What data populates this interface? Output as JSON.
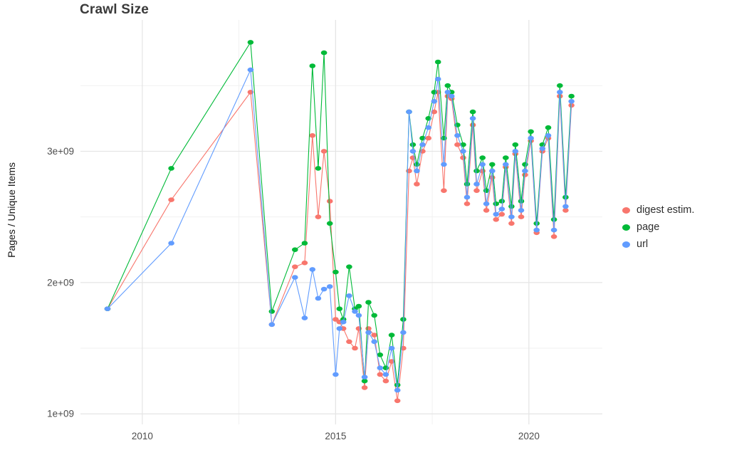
{
  "title": "Crawl Size",
  "chart_data": {
    "type": "line",
    "title": "Crawl Size",
    "xlabel": "",
    "ylabel": "Pages / Unique Items",
    "grid": true,
    "legend_position": "right",
    "xlim": [
      2008.4,
      2021.9
    ],
    "ylim": [
      920000000.0,
      4000000000.0
    ],
    "x_ticks": {
      "values": [
        2010,
        2015,
        2020
      ],
      "labels": [
        "2010",
        "2015",
        "2020"
      ]
    },
    "y_ticks": {
      "values": [
        1000000000.0,
        2000000000.0,
        3000000000.0
      ],
      "labels": [
        "1e+09",
        "2e+09",
        "3e+09"
      ]
    },
    "x_minor": [
      2012.5,
      2017.5
    ],
    "y_minor": [
      1500000000.0,
      2500000000.0,
      3500000000.0
    ],
    "x": [
      2009.1,
      2010.75,
      2012.8,
      2013.35,
      2013.95,
      2014.2,
      2014.4,
      2014.55,
      2014.7,
      2014.85,
      2015.0,
      2015.1,
      2015.2,
      2015.35,
      2015.5,
      2015.6,
      2015.75,
      2015.85,
      2016.0,
      2016.15,
      2016.3,
      2016.45,
      2016.6,
      2016.75,
      2016.9,
      2017.0,
      2017.1,
      2017.25,
      2017.4,
      2017.55,
      2017.65,
      2017.8,
      2017.9,
      2018.0,
      2018.15,
      2018.3,
      2018.4,
      2018.55,
      2018.65,
      2018.8,
      2018.9,
      2019.05,
      2019.15,
      2019.3,
      2019.4,
      2019.55,
      2019.65,
      2019.8,
      2019.9,
      2020.05,
      2020.2,
      2020.35,
      2020.5,
      2020.65,
      2020.8,
      2020.95,
      2021.1
    ],
    "series": [
      {
        "id": "digest-estim",
        "name": "digest estim.",
        "color": "#F8766D",
        "values": [
          1800000000.0,
          2630000000.0,
          3450000000.0,
          1680000000.0,
          2120000000.0,
          2150000000.0,
          3120000000.0,
          2500000000.0,
          3000000000.0,
          2620000000.0,
          1720000000.0,
          1700000000.0,
          1650000000.0,
          1550000000.0,
          1500000000.0,
          1650000000.0,
          1200000000.0,
          1650000000.0,
          1600000000.0,
          1300000000.0,
          1250000000.0,
          1400000000.0,
          1100000000.0,
          1500000000.0,
          2850000000.0,
          2950000000.0,
          2750000000.0,
          3000000000.0,
          3100000000.0,
          3300000000.0,
          3450000000.0,
          2700000000.0,
          3420000000.0,
          3400000000.0,
          3050000000.0,
          2950000000.0,
          2600000000.0,
          3200000000.0,
          2700000000.0,
          2850000000.0,
          2550000000.0,
          2800000000.0,
          2480000000.0,
          2520000000.0,
          2880000000.0,
          2450000000.0,
          2980000000.0,
          2500000000.0,
          2820000000.0,
          3080000000.0,
          2380000000.0,
          3000000000.0,
          3100000000.0,
          2350000000.0,
          3420000000.0,
          2550000000.0,
          3350000000.0
        ]
      },
      {
        "id": "page",
        "name": "page",
        "color": "#00BA38",
        "values": [
          1800000000.0,
          2870000000.0,
          3830000000.0,
          1780000000.0,
          2250000000.0,
          2300000000.0,
          3650000000.0,
          2870000000.0,
          3750000000.0,
          2450000000.0,
          2080000000.0,
          1800000000.0,
          1720000000.0,
          2120000000.0,
          1800000000.0,
          1820000000.0,
          1250000000.0,
          1850000000.0,
          1750000000.0,
          1450000000.0,
          1350000000.0,
          1600000000.0,
          1220000000.0,
          1720000000.0,
          3300000000.0,
          3050000000.0,
          2900000000.0,
          3100000000.0,
          3250000000.0,
          3450000000.0,
          3680000000.0,
          3100000000.0,
          3500000000.0,
          3450000000.0,
          3200000000.0,
          3050000000.0,
          2750000000.0,
          3300000000.0,
          2850000000.0,
          2950000000.0,
          2700000000.0,
          2900000000.0,
          2600000000.0,
          2620000000.0,
          2950000000.0,
          2580000000.0,
          3050000000.0,
          2620000000.0,
          2900000000.0,
          3150000000.0,
          2450000000.0,
          3050000000.0,
          3180000000.0,
          2480000000.0,
          3500000000.0,
          2650000000.0,
          3420000000.0
        ]
      },
      {
        "id": "url",
        "name": "url",
        "color": "#619CFF",
        "values": [
          1800000000.0,
          2300000000.0,
          3620000000.0,
          1680000000.0,
          2040000000.0,
          1730000000.0,
          2100000000.0,
          1880000000.0,
          1950000000.0,
          1970000000.0,
          1300000000.0,
          1650000000.0,
          1700000000.0,
          1900000000.0,
          1780000000.0,
          1750000000.0,
          1280000000.0,
          1620000000.0,
          1550000000.0,
          1350000000.0,
          1300000000.0,
          1500000000.0,
          1180000000.0,
          1620000000.0,
          3300000000.0,
          3000000000.0,
          2850000000.0,
          3050000000.0,
          3180000000.0,
          3380000000.0,
          3550000000.0,
          2900000000.0,
          3450000000.0,
          3420000000.0,
          3120000000.0,
          3000000000.0,
          2650000000.0,
          3250000000.0,
          2750000000.0,
          2900000000.0,
          2600000000.0,
          2850000000.0,
          2520000000.0,
          2560000000.0,
          2900000000.0,
          2500000000.0,
          3000000000.0,
          2550000000.0,
          2850000000.0,
          3100000000.0,
          2400000000.0,
          3020000000.0,
          3120000000.0,
          2400000000.0,
          3450000000.0,
          2580000000.0,
          3380000000.0
        ]
      }
    ],
    "style": {
      "grid_major_color": "#e4e4e4",
      "grid_minor_color": "#f1f1f1",
      "background": "#ffffff"
    }
  }
}
